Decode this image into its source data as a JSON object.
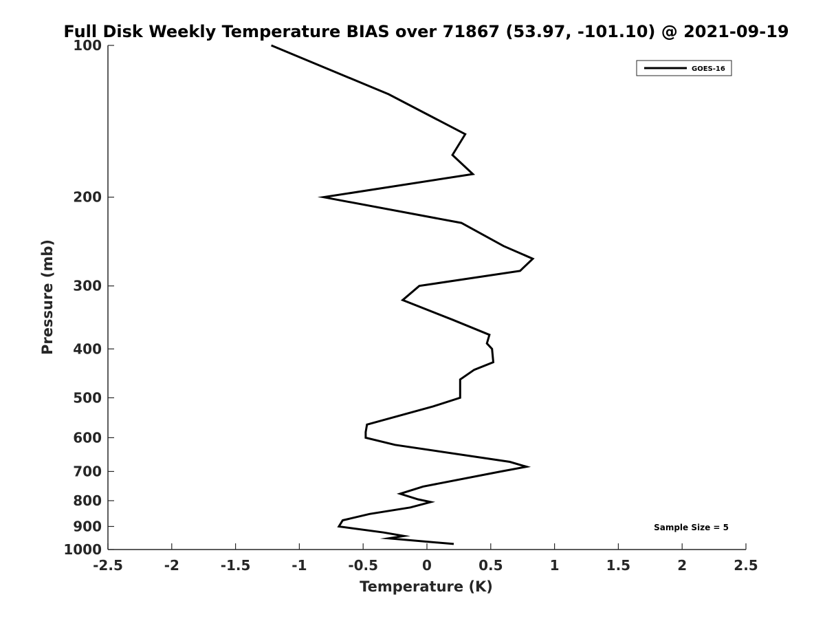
{
  "chart_data": {
    "type": "line",
    "title": "Full Disk Weekly Temperature BIAS over 71867 (53.97, -101.10) @ 2021-09-19",
    "xlabel": "Temperature (K)",
    "ylabel": "Pressure (mb)",
    "xlim": [
      -2.5,
      2.5
    ],
    "ylim": [
      100,
      1000
    ],
    "y_scale": "log",
    "y_reversed": true,
    "grid": false,
    "x_ticks": [
      -2.5,
      -2,
      -1.5,
      -1,
      -0.5,
      0,
      0.5,
      1,
      1.5,
      2,
      2.5
    ],
    "x_tick_labels": [
      "-2.5",
      "-2",
      "-1.5",
      "-1",
      "-0.5",
      "0",
      "0.5",
      "1",
      "1.5",
      "2",
      "2.5"
    ],
    "y_ticks": [
      100,
      200,
      300,
      400,
      500,
      600,
      700,
      800,
      900,
      1000
    ],
    "y_tick_labels": [
      "100",
      "200",
      "300",
      "400",
      "500",
      "600",
      "700",
      "800",
      "900",
      "1000"
    ],
    "legend_position": "top-right",
    "annotation": "Sample Size = 5",
    "series": [
      {
        "name": "GOES-16",
        "color": "#000000",
        "points": [
          {
            "x": -1.22,
            "y": 100
          },
          {
            "x": -0.3,
            "y": 125
          },
          {
            "x": 0.3,
            "y": 150
          },
          {
            "x": 0.2,
            "y": 165
          },
          {
            "x": 0.36,
            "y": 180
          },
          {
            "x": -0.81,
            "y": 200
          },
          {
            "x": 0.27,
            "y": 225
          },
          {
            "x": 0.6,
            "y": 250
          },
          {
            "x": 0.83,
            "y": 265
          },
          {
            "x": 0.73,
            "y": 280
          },
          {
            "x": -0.06,
            "y": 300
          },
          {
            "x": -0.19,
            "y": 320
          },
          {
            "x": 0.2,
            "y": 350
          },
          {
            "x": 0.49,
            "y": 375
          },
          {
            "x": 0.47,
            "y": 390
          },
          {
            "x": 0.51,
            "y": 400
          },
          {
            "x": 0.52,
            "y": 425
          },
          {
            "x": 0.37,
            "y": 440
          },
          {
            "x": 0.26,
            "y": 460
          },
          {
            "x": 0.26,
            "y": 500
          },
          {
            "x": 0.05,
            "y": 520
          },
          {
            "x": -0.47,
            "y": 565
          },
          {
            "x": -0.48,
            "y": 585
          },
          {
            "x": -0.48,
            "y": 600
          },
          {
            "x": -0.25,
            "y": 620
          },
          {
            "x": 0.65,
            "y": 670
          },
          {
            "x": 0.78,
            "y": 685
          },
          {
            "x": 0.58,
            "y": 700
          },
          {
            "x": -0.03,
            "y": 750
          },
          {
            "x": -0.21,
            "y": 775
          },
          {
            "x": -0.07,
            "y": 795
          },
          {
            "x": 0.03,
            "y": 805
          },
          {
            "x": -0.13,
            "y": 825
          },
          {
            "x": -0.45,
            "y": 850
          },
          {
            "x": -0.66,
            "y": 875
          },
          {
            "x": -0.69,
            "y": 900
          },
          {
            "x": -0.34,
            "y": 925
          },
          {
            "x": -0.18,
            "y": 940
          },
          {
            "x": -0.3,
            "y": 950
          },
          {
            "x": 0.21,
            "y": 975
          }
        ]
      }
    ]
  }
}
